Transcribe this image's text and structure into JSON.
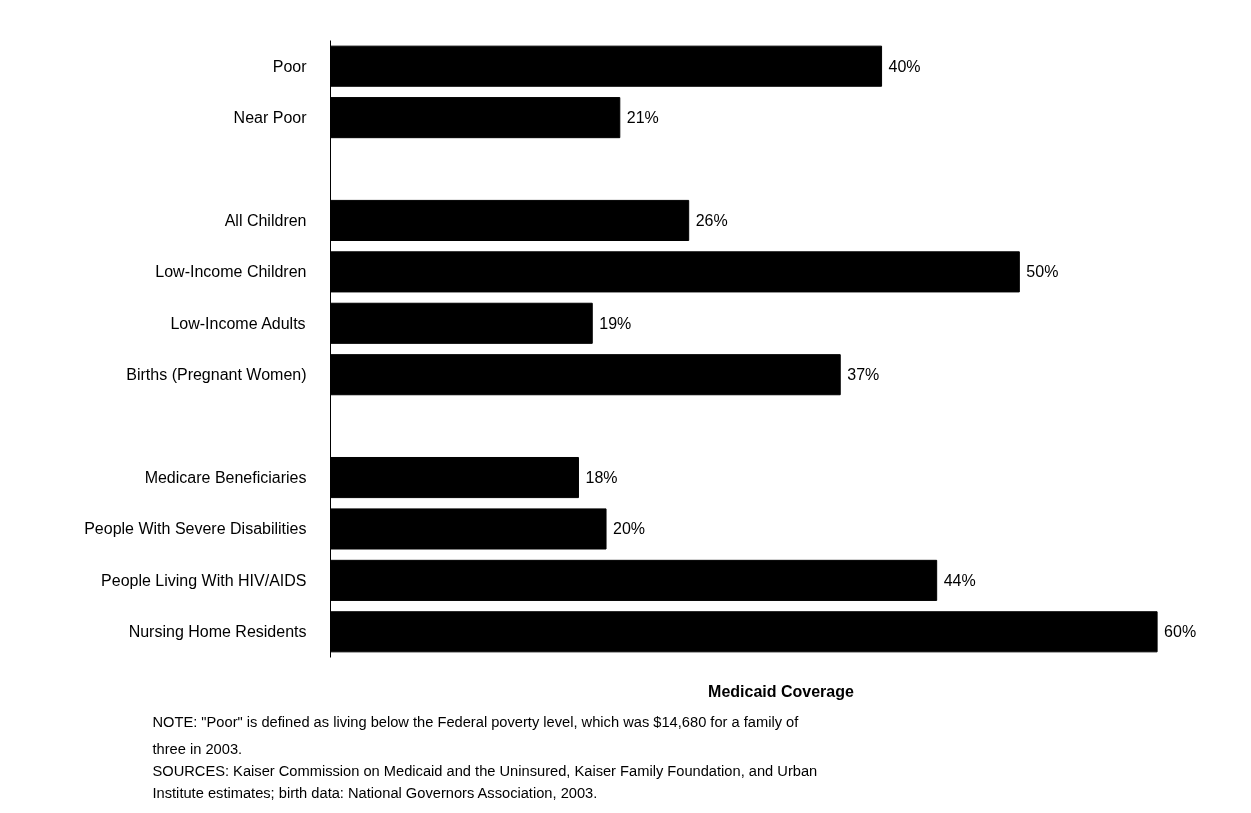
{
  "chart_data": {
    "type": "bar",
    "orientation": "horizontal",
    "xlabel": "Medicaid Coverage",
    "categories": [
      "Poor",
      "Near Poor",
      null,
      "All Children",
      "Low-Income Children",
      "Low-Income Adults",
      "Births (Pregnant Women)",
      null,
      "Medicare Beneficiaries",
      "People With Severe Disabilities",
      "People Living With HIV/AIDS",
      "Nursing Home Residents"
    ],
    "values": [
      40,
      21,
      null,
      26,
      50,
      19,
      37,
      null,
      18,
      20,
      44,
      60
    ],
    "value_labels": [
      "40%",
      "21%",
      null,
      "26%",
      "50%",
      "19%",
      "37%",
      null,
      "18%",
      "20%",
      "44%",
      "60%"
    ],
    "color": "#000000",
    "grid": false,
    "annotations": [
      "NOTE: \"Poor\" is defined as living below the Federal poverty level, which was $14,680 for a family of three in 2003.",
      "SOURCES: Kaiser Commission on Medicaid and the Uninsured, Kaiser Family Foundation, and Urban Institute estimates; birth data: National Governors Association, 2003."
    ]
  }
}
